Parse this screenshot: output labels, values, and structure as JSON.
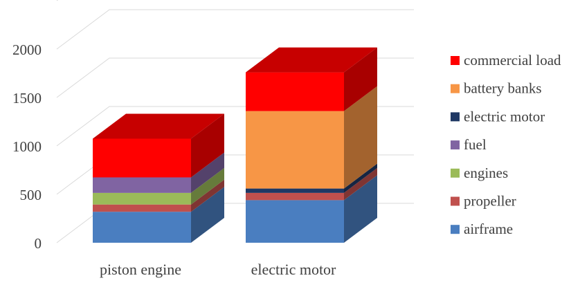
{
  "chart_data": {
    "type": "bar",
    "stacked": true,
    "style": "3d-stacked-column",
    "categories": [
      "piston engine",
      "electric motor"
    ],
    "series": [
      {
        "name": "airframe",
        "color": "#4a7ec0",
        "values": [
          320,
          440
        ]
      },
      {
        "name": "propeller",
        "color": "#c0504d",
        "values": [
          75,
          75
        ]
      },
      {
        "name": "engines",
        "color": "#9bbb59",
        "values": [
          120,
          0
        ]
      },
      {
        "name": "electric motor",
        "color": "#1f3864",
        "values": [
          0,
          45
        ]
      },
      {
        "name": "fuel",
        "color": "#8064a2",
        "values": [
          160,
          0
        ]
      },
      {
        "name": "battery banks",
        "color": "#f79646",
        "values": [
          0,
          800
        ]
      },
      {
        "name": "commercial load",
        "color": "#ff0000",
        "values": [
          400,
          400
        ]
      }
    ],
    "yticks": [
      0,
      500,
      1000,
      1500,
      2000
    ],
    "ylim": [
      0,
      2500
    ],
    "title": "",
    "xlabel": "",
    "ylabel": "",
    "grid": true,
    "legend_position": "right",
    "legend_order": [
      "commercial load",
      "battery banks",
      "electric motor",
      "fuel",
      "engines",
      "propeller",
      "airframe"
    ]
  }
}
